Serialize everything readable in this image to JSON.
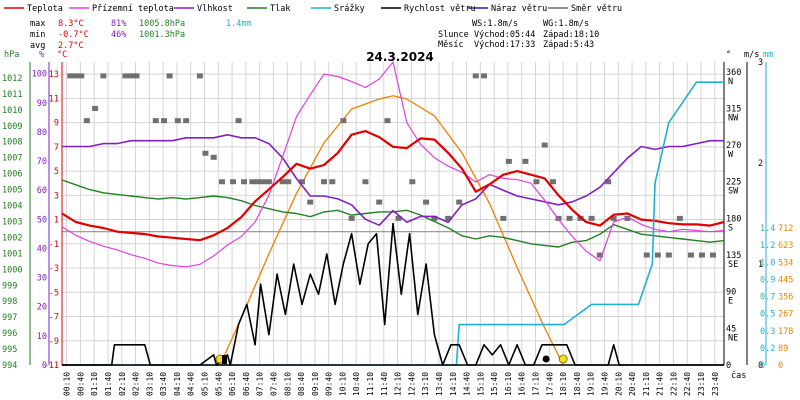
{
  "legend": [
    {
      "label": "Teplota",
      "color": "#e00000"
    },
    {
      "label": "Přízemní teplota",
      "color": "#e040e0"
    },
    {
      "label": "Vlhkost",
      "color": "#8020c0"
    },
    {
      "label": "Tlak",
      "color": "#208020"
    },
    {
      "label": "Srážky",
      "color": "#20b0d0"
    },
    {
      "label": "Rychlost větru",
      "color": "#000000"
    },
    {
      "label": "Náraz větru",
      "color": "#202090"
    },
    {
      "label": "Směr větru",
      "color": "#707070"
    }
  ],
  "stats": {
    "max": {
      "label": "max",
      "temp": "8.3°C",
      "hum": "81%",
      "press": "1005.8hPa",
      "rain": "1.4mm"
    },
    "min": {
      "label": "min",
      "temp": "-0.7°C",
      "hum": "46%",
      "press": "1001.3hPa"
    },
    "avg": {
      "label": "avg",
      "temp": "2.7°C"
    }
  },
  "wind": {
    "ws": "WS:1.8m/s",
    "wg": "WG:1.8m/s"
  },
  "sun": {
    "label": "Slunce",
    "rise": "Východ:05:44",
    "set": "Západ:18:10"
  },
  "moon": {
    "label": "Měsíc",
    "rise": "Východ:17:33",
    "set": "Západ:5:43"
  },
  "date": "24.3.2024",
  "axis_headers": {
    "hpa": "hPa",
    "pct": "%",
    "degc": "°C",
    "deg": "°",
    "ms": "m/s",
    "mm": "mm",
    "time": "čas"
  },
  "colors": {
    "temp": "#e00000",
    "ground": "#e040e0",
    "hum": "#8020c0",
    "press": "#208020",
    "rain": "#20b0d0",
    "speed": "#000000",
    "gust": "#202090",
    "dir": "#707070",
    "sun": "#f08000",
    "grid": "#d4d4d4",
    "zero": "#909090",
    "wm": "#f08000"
  },
  "chart_data": {
    "type": "line",
    "title": "24.3.2024",
    "xlabel": "čas",
    "x_ticks": [
      "00:10",
      "00:40",
      "01:10",
      "01:40",
      "02:10",
      "02:40",
      "03:10",
      "03:40",
      "04:10",
      "04:40",
      "05:10",
      "05:40",
      "06:10",
      "06:40",
      "07:10",
      "07:40",
      "08:10",
      "08:40",
      "09:10",
      "09:40",
      "10:10",
      "10:40",
      "11:10",
      "11:40",
      "12:10",
      "12:40",
      "13:10",
      "13:40",
      "14:10",
      "14:40",
      "15:10",
      "15:40",
      "16:10",
      "16:40",
      "17:10",
      "17:40",
      "18:10",
      "18:40",
      "19:10",
      "19:40",
      "20:10",
      "20:40",
      "21:10",
      "21:40",
      "22:10",
      "22:40",
      "23:10",
      "23:40"
    ],
    "axes": {
      "temp": {
        "label": "°C",
        "range": [
          -11,
          14
        ],
        "ticks": [
          "13",
          "11",
          "9",
          "7",
          "5",
          "3",
          "1",
          "-1",
          "-3",
          "-5",
          "-7",
          "-9",
          "-11"
        ]
      },
      "pressure": {
        "label": "hPa",
        "range": [
          994,
          1013
        ],
        "ticks": [
          "1012",
          "1011",
          "1010",
          "1009",
          "1008",
          "1007",
          "1006",
          "1005",
          "1004",
          "1003",
          "1002",
          "1001",
          "1000",
          "999",
          "998",
          "997",
          "996",
          "995",
          "994"
        ]
      },
      "humidity": {
        "label": "%",
        "range": [
          0,
          104
        ],
        "ticks": [
          "100",
          "90",
          "80",
          "70",
          "60",
          "50",
          "40",
          "30",
          "20",
          "10",
          "0"
        ]
      },
      "direction": {
        "label": "°",
        "range": [
          0,
          372
        ],
        "ticks": [
          "360",
          "315",
          "270",
          "225",
          "180",
          "135",
          "90",
          "45",
          "0"
        ],
        "compass": [
          "N",
          "NW",
          "W",
          "SW",
          "S",
          "SE",
          "E",
          "NE",
          ""
        ]
      },
      "wind_speed": {
        "label": "m/s",
        "range": [
          0,
          3
        ],
        "ticks": [
          "3",
          "2",
          "1",
          "0"
        ]
      },
      "rain": {
        "label": "mm",
        "range": [
          0,
          1.5
        ],
        "ticks": [
          "0",
          "0.2",
          "0.3",
          "0.5",
          "0.7",
          "0.9",
          "1.0",
          "1.2",
          "1.4"
        ]
      },
      "solar": {
        "range": [
          0,
          900
        ],
        "ticks": [
          "0",
          "89",
          "178",
          "267",
          "356",
          "445",
          "534",
          "623",
          "712",
          "801"
        ]
      }
    },
    "series": [
      {
        "name": "Teplota",
        "unit": "°C",
        "x": [
          0,
          0.5,
          1,
          1.5,
          2,
          2.5,
          3,
          3.5,
          4,
          4.5,
          5,
          5.5,
          6,
          6.5,
          7,
          7.5,
          8,
          8.5,
          9,
          9.5,
          10,
          10.5,
          11,
          11.5,
          12,
          12.5,
          13,
          13.5,
          14,
          14.5,
          15,
          15.5,
          16,
          16.5,
          17,
          17.5,
          18,
          18.5,
          19,
          19.5,
          20,
          20.5,
          21,
          21.5,
          22,
          22.5,
          23,
          23.5,
          24
        ],
        "values": [
          1.5,
          0.8,
          0.5,
          0.3,
          0.0,
          -0.1,
          -0.2,
          -0.4,
          -0.5,
          -0.6,
          -0.7,
          -0.3,
          0.3,
          1.2,
          2.5,
          3.5,
          4.5,
          5.6,
          5.2,
          5.5,
          6.5,
          8.0,
          8.3,
          7.8,
          7.0,
          6.9,
          7.7,
          7.6,
          6.5,
          5.2,
          3.3,
          3.9,
          4.7,
          5.0,
          4.7,
          4.4,
          3.0,
          1.8,
          0.8,
          0.5,
          1.4,
          1.5,
          1.0,
          0.9,
          0.7,
          0.6,
          0.6,
          0.5,
          0.8
        ]
      },
      {
        "name": "Přízemní teplota",
        "unit": "°C",
        "x": [
          0,
          0.5,
          1,
          1.5,
          2,
          2.5,
          3,
          3.5,
          4,
          4.5,
          5,
          5.5,
          6,
          6.5,
          7,
          7.5,
          8,
          8.5,
          9,
          9.5,
          10,
          10.5,
          11,
          11.5,
          12,
          12.5,
          13,
          13.5,
          14,
          14.5,
          15,
          15.5,
          16,
          16.5,
          17,
          17.5,
          18,
          18.5,
          19,
          19.5,
          20,
          20.5,
          21,
          21.5,
          22,
          22.5,
          23,
          23.5,
          24
        ],
        "values": [
          0.4,
          -0.3,
          -0.8,
          -1.2,
          -1.5,
          -1.9,
          -2.2,
          -2.6,
          -2.8,
          -2.9,
          -2.7,
          -2.0,
          -1.1,
          -0.4,
          0.8,
          3.0,
          6.2,
          9.5,
          11.3,
          13.0,
          12.8,
          12.4,
          11.9,
          12.6,
          14.0,
          9.0,
          7.2,
          6.1,
          5.4,
          4.9,
          4.1,
          4.7,
          4.4,
          4.3,
          4.0,
          2.6,
          1.0,
          -0.4,
          -1.6,
          -2.4,
          0.8,
          1.2,
          0.6,
          0.2,
          0.0,
          0.2,
          0.1,
          0.0,
          0.1
        ]
      },
      {
        "name": "Vlhkost",
        "unit": "%",
        "x": [
          0,
          0.5,
          1,
          1.5,
          2,
          2.5,
          3,
          3.5,
          4,
          4.5,
          5,
          5.5,
          6,
          6.5,
          7,
          7.5,
          8,
          8.5,
          9,
          9.5,
          10,
          10.5,
          11,
          11.5,
          12,
          12.5,
          13,
          13.5,
          14,
          14.5,
          15,
          15.5,
          16,
          16.5,
          17,
          17.5,
          18,
          18.5,
          19,
          19.5,
          20,
          20.5,
          21,
          21.5,
          22,
          22.5,
          23,
          23.5,
          24
        ],
        "values": [
          75,
          75,
          75,
          76,
          76,
          77,
          77,
          77,
          77,
          78,
          78,
          78,
          79,
          78,
          78,
          76,
          71,
          64,
          58,
          58,
          57,
          55,
          50,
          48,
          53,
          49,
          51,
          51,
          49,
          55,
          57,
          62,
          60,
          58,
          57,
          56,
          55,
          56,
          58,
          61,
          66,
          71,
          75,
          74,
          75,
          75,
          76,
          77,
          77
        ]
      },
      {
        "name": "Tlak",
        "unit": "hPa",
        "x": [
          0,
          0.5,
          1,
          1.5,
          2,
          2.5,
          3,
          3.5,
          4,
          4.5,
          5,
          5.5,
          6,
          6.5,
          7,
          7.5,
          8,
          8.5,
          9,
          9.5,
          10,
          10.5,
          11,
          11.5,
          12,
          12.5,
          13,
          13.5,
          14,
          14.5,
          15,
          15.5,
          16,
          16.5,
          17,
          17.5,
          18,
          18.5,
          19,
          19.5,
          20,
          20.5,
          21,
          21.5,
          22,
          22.5,
          23,
          23.5,
          24
        ],
        "values": [
          1005.6,
          1005.3,
          1005.0,
          1004.8,
          1004.7,
          1004.6,
          1004.5,
          1004.4,
          1004.5,
          1004.4,
          1004.5,
          1004.6,
          1004.5,
          1004.3,
          1004.0,
          1003.8,
          1003.6,
          1003.5,
          1003.3,
          1003.6,
          1003.7,
          1003.4,
          1003.5,
          1003.6,
          1003.6,
          1003.7,
          1003.4,
          1003.0,
          1002.6,
          1002.1,
          1001.9,
          1002.1,
          1002.0,
          1001.8,
          1001.6,
          1001.5,
          1001.4,
          1001.7,
          1001.8,
          1002.2,
          1002.8,
          1002.5,
          1002.2,
          1002.1,
          1002.0,
          1001.9,
          1001.8,
          1001.7,
          1001.8
        ]
      },
      {
        "name": "Srážky",
        "unit": "mm",
        "x": [
          0,
          14.3,
          14.4,
          18.2,
          19.2,
          19.5,
          19.8,
          20.0,
          20.3,
          20.6,
          20.9,
          21.4,
          21.5,
          22.0,
          22.5,
          23.0,
          24
        ],
        "values": [
          0,
          0,
          0.2,
          0.2,
          0.3,
          0.3,
          0.3,
          0.3,
          0.3,
          0.3,
          0.3,
          0.5,
          0.9,
          1.2,
          1.3,
          1.4,
          1.4
        ]
      },
      {
        "name": "Rychlost větru",
        "unit": "m/s",
        "x": [
          0,
          1.8,
          1.9,
          2.2,
          2.5,
          3.0,
          3.2,
          5.0,
          5.5,
          5.6,
          6.0,
          6.1,
          6.4,
          6.7,
          7.0,
          7.2,
          7.5,
          7.8,
          8.1,
          8.4,
          8.7,
          9.0,
          9.3,
          9.6,
          9.9,
          10.2,
          10.5,
          10.8,
          11.1,
          11.4,
          11.7,
          12.0,
          12.3,
          12.6,
          12.9,
          13.2,
          13.5,
          13.8,
          14.1,
          14.4,
          14.7,
          15.0,
          15.3,
          15.6,
          15.9,
          16.2,
          16.5,
          16.8,
          17.1,
          17.4,
          17.7,
          18.0,
          18.3,
          18.6,
          19.0,
          19.5,
          19.8,
          20.0,
          20.2,
          20.4,
          21.0,
          24
        ],
        "values": [
          0,
          0,
          0.2,
          0.2,
          0.2,
          0.2,
          0,
          0,
          0.1,
          0,
          0.1,
          0,
          0.4,
          0.6,
          0.2,
          0.8,
          0.3,
          0.9,
          0.5,
          1.0,
          0.6,
          0.9,
          0.7,
          1.1,
          0.6,
          1.0,
          1.3,
          0.8,
          1.2,
          1.3,
          0.4,
          1.4,
          0.7,
          1.3,
          0.5,
          1.0,
          0.3,
          0,
          0.2,
          0.2,
          0,
          0,
          0.2,
          0.1,
          0.2,
          0,
          0.2,
          0,
          0,
          0.2,
          0.2,
          0.2,
          0.2,
          0,
          0,
          0,
          0,
          0.2,
          0,
          0,
          0,
          0
        ]
      },
      {
        "name": "Náraz větru",
        "unit": "m/s",
        "x": [],
        "values": []
      },
      {
        "name": "Směr větru",
        "unit": "°",
        "x": [
          0.3,
          0.5,
          0.7,
          0.9,
          1.2,
          1.5,
          2.3,
          2.5,
          2.7,
          3.4,
          3.7,
          3.9,
          4.2,
          4.5,
          5.0,
          5.2,
          5.5,
          5.8,
          6.2,
          6.4,
          6.6,
          6.9,
          7.1,
          7.3,
          7.5,
          8.0,
          8.2,
          8.7,
          9.0,
          9.5,
          9.8,
          10.2,
          10.5,
          11.0,
          11.5,
          11.8,
          12.2,
          12.7,
          13.2,
          13.5,
          14.0,
          14.4,
          15.0,
          15.3,
          16.0,
          16.2,
          16.8,
          17.2,
          17.5,
          17.8,
          18.0,
          18.4,
          18.8,
          19.2,
          19.5,
          19.8,
          20.0,
          20.5,
          21.2,
          21.6,
          22.0,
          22.4,
          22.8,
          23.2,
          23.6
        ],
        "values": [
          355,
          355,
          355,
          300,
          315,
          355,
          355,
          355,
          355,
          300,
          300,
          355,
          300,
          300,
          355,
          260,
          255,
          225,
          225,
          300,
          225,
          225,
          225,
          225,
          225,
          225,
          225,
          225,
          200,
          225,
          225,
          300,
          180,
          225,
          200,
          300,
          180,
          225,
          200,
          180,
          180,
          200,
          355,
          355,
          180,
          250,
          250,
          225,
          270,
          225,
          180,
          180,
          180,
          180,
          135,
          225,
          180,
          180,
          135,
          135,
          135,
          180,
          135,
          135,
          135
        ]
      }
    ],
    "sun_elevation": {
      "unit": "W/m²",
      "x": [
        5.73,
        6.5,
        7.5,
        8.5,
        9.5,
        10.5,
        11.5,
        12.0,
        12.5,
        13.5,
        14.5,
        15.5,
        16.5,
        17.5,
        18.17
      ],
      "values": [
        0,
        140,
        330,
        510,
        660,
        760,
        790,
        800,
        790,
        740,
        630,
        480,
        290,
        110,
        0
      ]
    },
    "markers": [
      {
        "name": "sunrise",
        "x": 5.73
      },
      {
        "name": "sunset",
        "x": 18.17
      },
      {
        "name": "moonrise",
        "x": 17.55
      }
    ]
  }
}
